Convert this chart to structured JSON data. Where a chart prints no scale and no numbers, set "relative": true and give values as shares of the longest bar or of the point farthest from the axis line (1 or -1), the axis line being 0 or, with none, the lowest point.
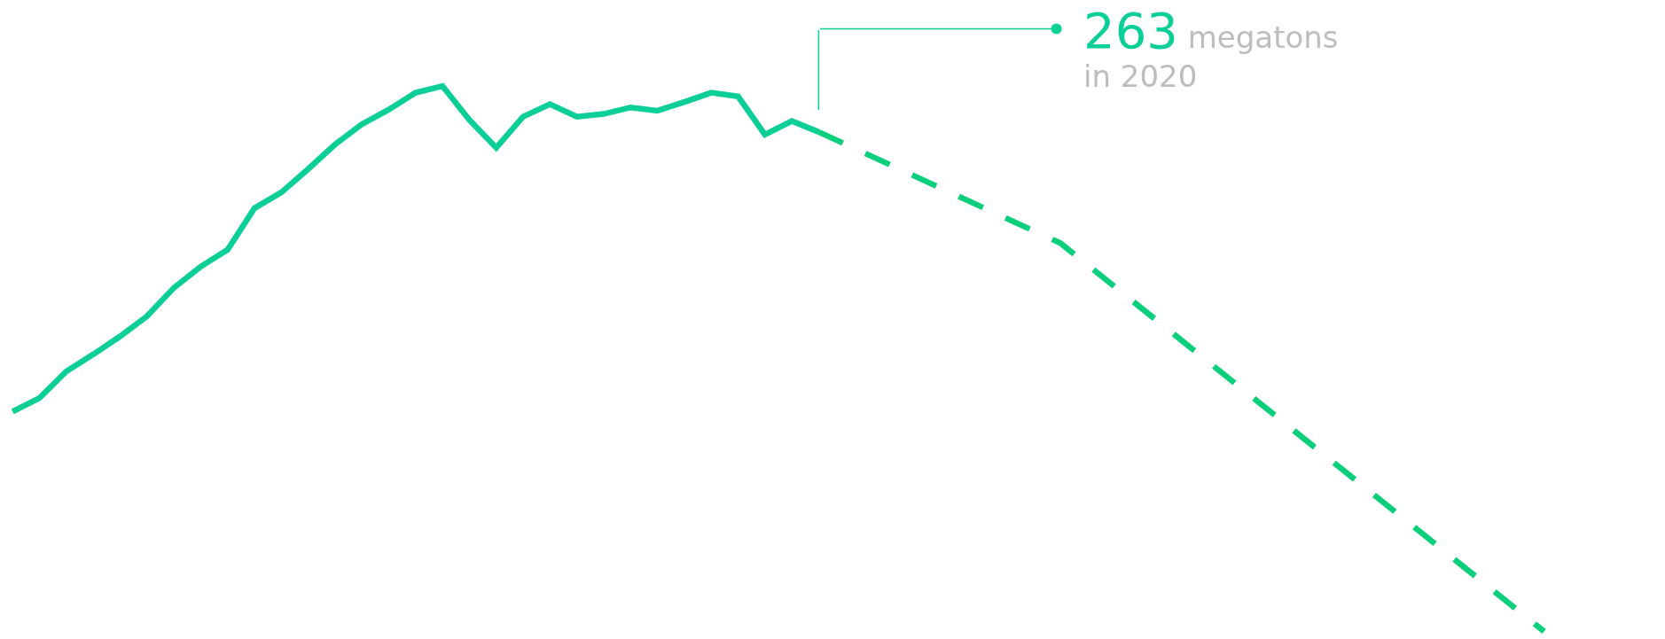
{
  "chart_data": {
    "type": "line",
    "relative": true,
    "marker": "none",
    "categories": [
      null,
      null,
      null,
      null,
      null,
      null,
      null,
      null,
      null,
      null,
      null,
      null,
      null,
      null,
      null,
      null,
      null,
      null,
      null,
      null,
      null,
      null,
      null,
      null,
      null,
      null,
      null,
      null,
      null,
      null,
      null,
      null,
      null,
      null,
      null,
      null,
      null,
      null,
      null,
      null,
      null,
      null,
      null,
      null,
      null,
      null,
      null,
      null,
      null,
      null,
      null,
      null,
      null,
      null,
      null,
      null,
      null,
      null
    ],
    "annotations": [
      "263",
      "megatons",
      "in 2020"
    ],
    "series": [
      {
        "color": "#0ccf98",
        "line_style": "solid",
        "values": [
          0.403,
          0.428,
          0.477,
          0.508,
          0.541,
          0.578,
          0.63,
          0.669,
          0.7,
          0.776,
          0.805,
          0.848,
          0.893,
          0.93,
          0.957,
          0.988,
          1,
          0.938,
          0.887,
          0.944,
          0.967,
          0.944,
          0.949,
          0.961,
          0.955,
          0.971,
          0.988,
          0.981,
          0.911,
          0.936,
          0.916,
          null,
          null,
          null,
          null,
          null,
          null,
          null,
          null,
          null,
          null,
          null,
          null,
          null,
          null,
          null,
          null,
          null,
          null,
          null,
          null,
          null,
          null,
          null,
          null,
          null,
          null,
          null
        ]
      },
      {
        "color": "#0ccf7c",
        "line_style": "dashed",
        "values": [
          null,
          null,
          null,
          null,
          null,
          null,
          null,
          null,
          null,
          null,
          null,
          null,
          null,
          null,
          null,
          null,
          null,
          null,
          null,
          null,
          null,
          null,
          null,
          null,
          null,
          null,
          null,
          null,
          null,
          null,
          0.916,
          null,
          null,
          null,
          null,
          null,
          null,
          null,
          null,
          0.712,
          null,
          null,
          null,
          null,
          null,
          null,
          null,
          null,
          null,
          null,
          null,
          null,
          null,
          null,
          null,
          null,
          null,
          0
        ]
      }
    ]
  }
}
